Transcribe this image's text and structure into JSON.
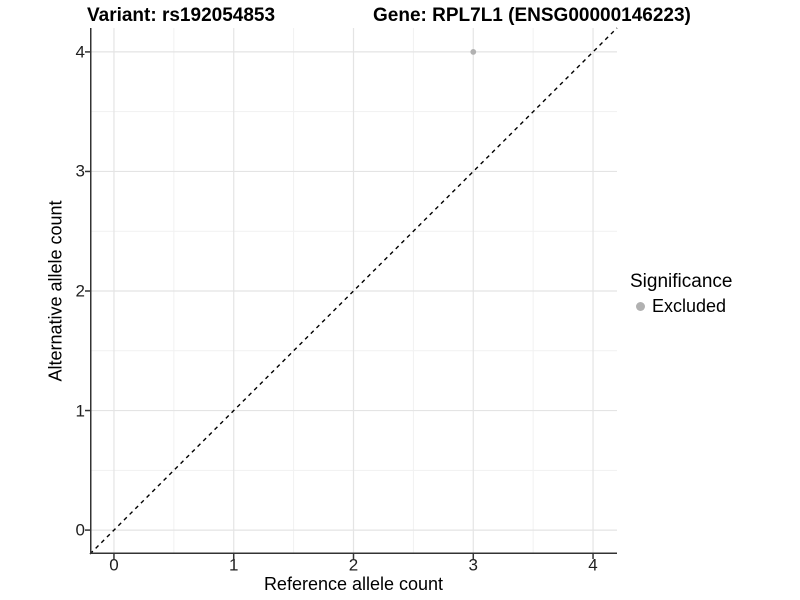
{
  "figure": {
    "title_variant": "Variant: rs192054853",
    "title_gene": "Gene: RPL7L1 (ENSG00000146223)"
  },
  "chart_data": {
    "type": "scatter",
    "title": "Variant: rs192054853   Gene: RPL7L1 (ENSG00000146223)",
    "variant": "rs192054853",
    "gene_symbol": "RPL7L1",
    "gene_id": "ENSG00000146223",
    "xlabel": "Reference allele count",
    "ylabel": "Alternative allele count",
    "xlim": [
      -0.2,
      4.2
    ],
    "ylim": [
      -0.2,
      4.2
    ],
    "xticks": [
      0,
      1,
      2,
      3,
      4
    ],
    "yticks": [
      0,
      1,
      2,
      3,
      4
    ],
    "minor_grid_step": 0.5,
    "grid": "major and minor, light gray on white",
    "reference_line": {
      "kind": "identity y=x",
      "style": "dashed",
      "color": "#000000",
      "from": [
        -0.2,
        -0.2
      ],
      "to": [
        4.2,
        4.2
      ]
    },
    "series": [
      {
        "name": "Excluded",
        "color": "#b1b1b1",
        "marker": "circle",
        "points": [
          {
            "x": 3,
            "y": 4
          }
        ]
      }
    ],
    "legend": {
      "title": "Significance",
      "position": "right",
      "items": [
        {
          "label": "Excluded",
          "color": "#b1b1b1",
          "marker": "circle"
        }
      ]
    }
  },
  "colors": {
    "background": "#ffffff",
    "grid_major": "#e4e4e4",
    "grid_minor": "#f1f1f1",
    "axis_line": "#333333",
    "tick_mark": "#333333",
    "tick_text": "#1f1f1f",
    "title_text": "#000000"
  }
}
